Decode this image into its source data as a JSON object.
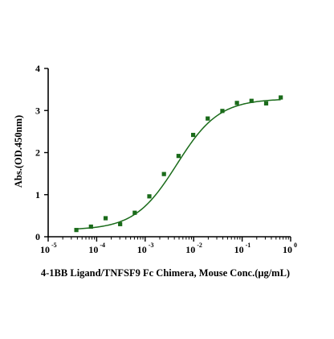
{
  "chart_data": {
    "type": "scatter",
    "title": "",
    "xlabel": "4-1BB Ligand/TNFSF9 Fc Chimera, Mouse Conc.(μg/mL)",
    "ylabel": "Abs.(OD.450nm)",
    "xscale": "log",
    "xlim": [
      1e-05,
      1
    ],
    "ylim": [
      0,
      4
    ],
    "grid": false,
    "legend": "none",
    "x_ticks": [
      {
        "value": 1e-05,
        "base": "10",
        "exp": "-5"
      },
      {
        "value": 0.0001,
        "base": "10",
        "exp": "-4"
      },
      {
        "value": 0.001,
        "base": "10",
        "exp": "-3"
      },
      {
        "value": 0.01,
        "base": "10",
        "exp": "-2"
      },
      {
        "value": 0.1,
        "base": "10",
        "exp": "-1"
      },
      {
        "value": 1,
        "base": "10",
        "exp": "0"
      }
    ],
    "y_ticks": [
      {
        "value": 0,
        "label": "0"
      },
      {
        "value": 1,
        "label": "1"
      },
      {
        "value": 2,
        "label": "2"
      },
      {
        "value": 3,
        "label": "3"
      },
      {
        "value": 4,
        "label": "4"
      }
    ],
    "series": [
      {
        "x": [
          3.81e-05,
          7.63e-05,
          0.000153,
          0.000305,
          0.00061,
          0.00122,
          0.00244,
          0.00488,
          0.00977,
          0.0195,
          0.0391,
          0.0781,
          0.156,
          0.3125,
          0.625
        ],
        "y": [
          0.16,
          0.24,
          0.44,
          0.3,
          0.57,
          0.96,
          1.49,
          1.92,
          2.42,
          2.81,
          2.99,
          3.18,
          3.23,
          3.17,
          3.31
        ],
        "fit": {
          "model": "4PL",
          "bottom": 0.16,
          "top": 3.28,
          "ec50": 0.0045,
          "hill": 1.0
        }
      }
    ],
    "colors": {
      "series": "#1a6b1a",
      "axis": "#000000"
    }
  }
}
